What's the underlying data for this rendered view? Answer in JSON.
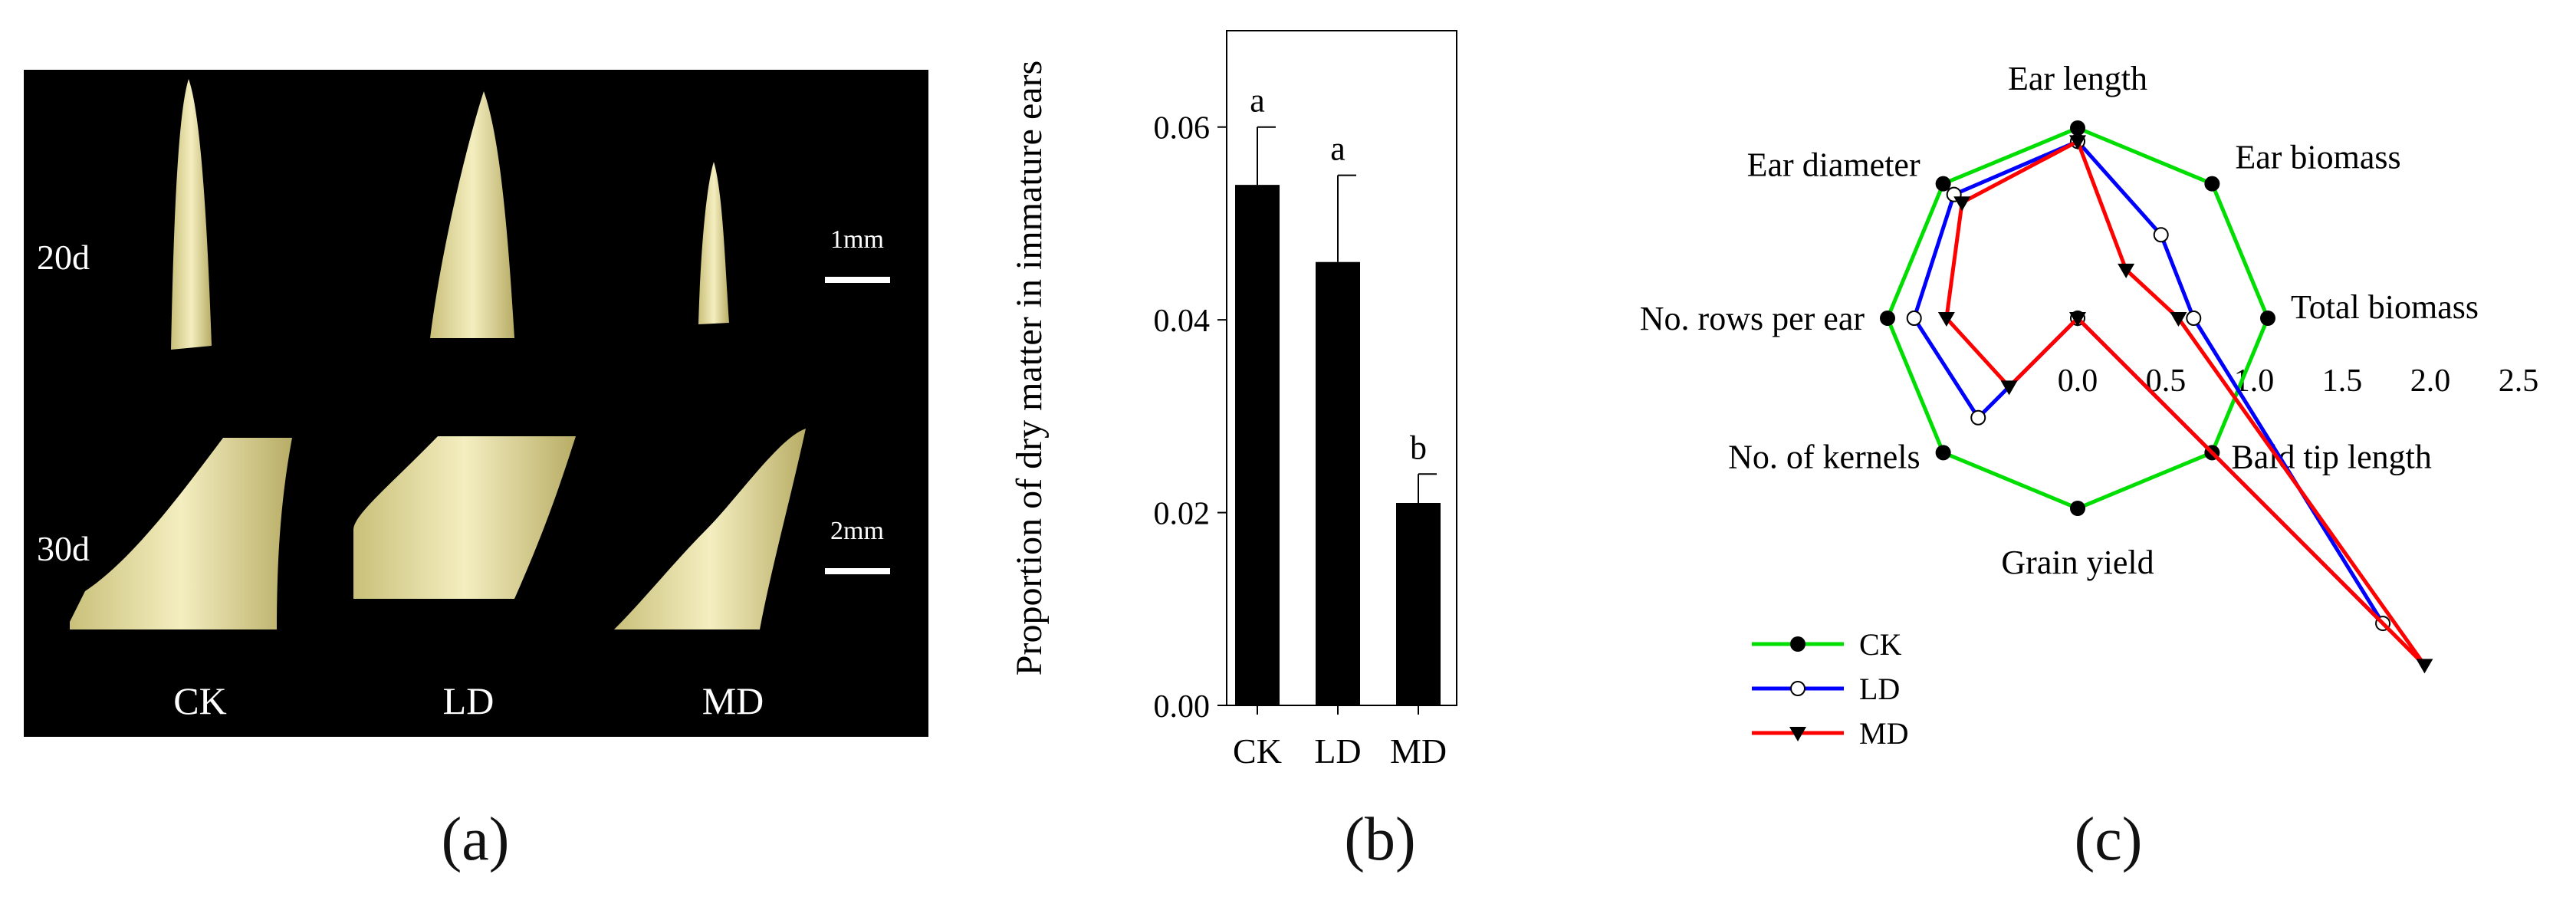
{
  "panel_a": {
    "label": "(a)",
    "row_labels": [
      "20d",
      "30d"
    ],
    "scale_bars": [
      "1mm",
      "2mm"
    ],
    "column_labels": [
      "CK",
      "LD",
      "MD"
    ]
  },
  "panel_b": {
    "label": "(b)"
  },
  "panel_c": {
    "label": "(c)"
  },
  "chart_data": [
    {
      "type": "bar",
      "categories": [
        "CK",
        "LD",
        "MD"
      ],
      "values": [
        0.054,
        0.046,
        0.021
      ],
      "errors": [
        0.006,
        0.009,
        0.003
      ],
      "significance": [
        "a",
        "a",
        "b"
      ],
      "title": "",
      "xlabel": "",
      "ylabel": "Proportion of dry matter in immature ears",
      "ylim": [
        0,
        0.07
      ],
      "yticks": [
        "0.00",
        "0.02",
        "0.04",
        "0.06"
      ],
      "bar_color": "#000000"
    },
    {
      "type": "radar",
      "axes": [
        "Ear length",
        "Ear biomass",
        "Total biomass",
        "Bald tip length",
        "Grain yield",
        "No. of kernels",
        "No. rows per ear",
        "Ear diameter"
      ],
      "radial_ticks": [
        "0.0",
        "0.5",
        "1.0",
        "1.5",
        "2.0",
        "2.5"
      ],
      "rlim": [
        0,
        2.5
      ],
      "legend_position": "bottom-left",
      "series": [
        {
          "name": "CK",
          "color": "#00dd00",
          "marker": "filled-circle",
          "values": [
            1.0,
            1.0,
            1.0,
            1.0,
            1.0,
            1.0,
            1.0,
            1.0
          ]
        },
        {
          "name": "LD",
          "color": "#0000ff",
          "marker": "open-circle",
          "values": [
            0.93,
            0.62,
            0.61,
            2.27,
            0.0,
            0.74,
            0.86,
            0.92
          ]
        },
        {
          "name": "MD",
          "color": "#ff0000",
          "marker": "filled-triangle",
          "values": [
            0.93,
            0.36,
            0.53,
            2.58,
            0.0,
            0.51,
            0.69,
            0.86
          ]
        }
      ]
    }
  ]
}
